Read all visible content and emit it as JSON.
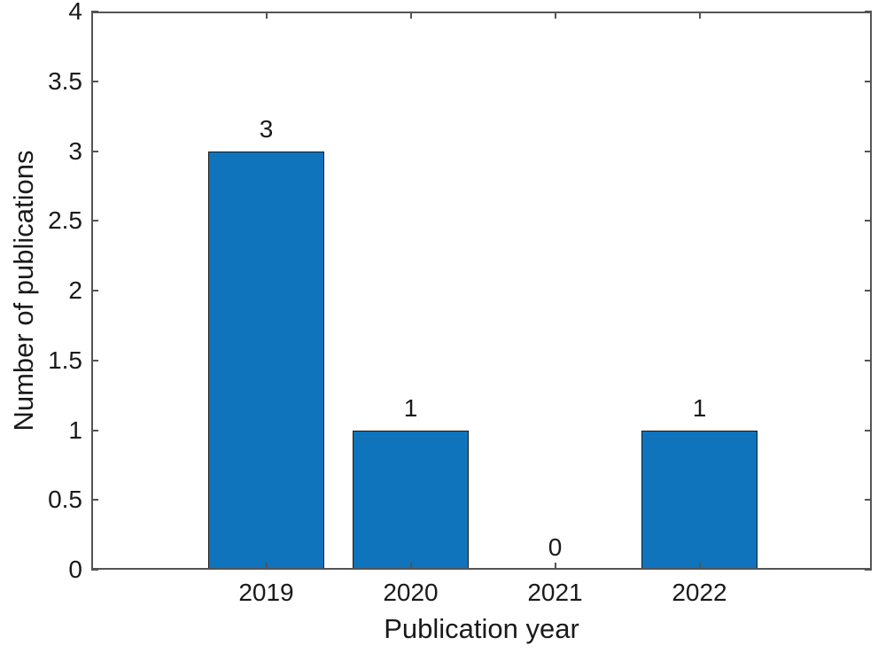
{
  "figure": {
    "background": "#FFFFFF"
  },
  "chart_data": {
    "type": "bar",
    "title": "",
    "xlabel": "Publication year",
    "ylabel": "Number of publications",
    "categories": [
      "2019",
      "2020",
      "2021",
      "2022"
    ],
    "values": [
      3,
      1,
      0,
      1
    ],
    "bar_value_labels": [
      "3",
      "1",
      "0",
      "1"
    ],
    "ylim": [
      0,
      4
    ],
    "yticks": [
      0,
      0.5,
      1,
      1.5,
      2,
      2.5,
      3,
      3.5,
      4
    ],
    "ytick_labels": [
      "0",
      "0.5",
      "1",
      "1.5",
      "2",
      "2.5",
      "3",
      "3.5",
      "4"
    ],
    "grid": false,
    "legend": "none",
    "box": true,
    "tick_direction": "in",
    "colors": {
      "bar_fill": "#0F74BC",
      "bar_edge": "#1A1A1A",
      "axis": "#545454",
      "text": "#1A1A1A"
    }
  }
}
